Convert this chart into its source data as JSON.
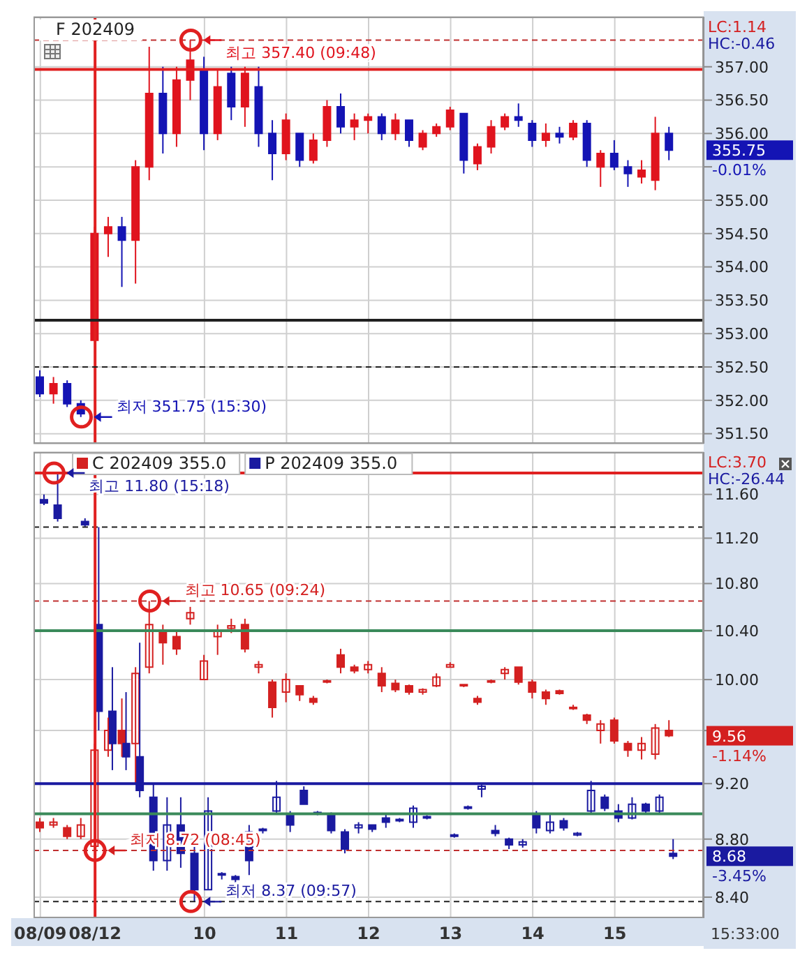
{
  "chart_data": [
    {
      "type": "candlestick",
      "title": "F 202409",
      "categories": [
        "08/09",
        null,
        null,
        null,
        "08/12",
        null,
        null,
        null,
        null,
        null,
        null,
        null,
        "10",
        null,
        null,
        null,
        null,
        null,
        "11",
        null,
        null,
        null,
        null,
        null,
        "12",
        null,
        null,
        null,
        null,
        null,
        "13",
        null,
        null,
        null,
        null,
        null,
        "14",
        null,
        null,
        null,
        null,
        null,
        "15",
        null,
        null,
        null,
        null,
        null,
        null
      ],
      "ohlc": [
        [
          352.35,
          352.45,
          352.05,
          352.1
        ],
        [
          352.1,
          352.35,
          351.95,
          352.25
        ],
        [
          352.25,
          352.3,
          351.9,
          351.95
        ],
        [
          351.95,
          352.0,
          351.75,
          351.8
        ],
        [
          352.9,
          354.6,
          352.9,
          354.5
        ],
        [
          354.5,
          354.75,
          354.15,
          354.6
        ],
        [
          354.6,
          354.75,
          353.7,
          354.4
        ],
        [
          354.4,
          355.6,
          353.75,
          355.5
        ],
        [
          355.5,
          357.3,
          355.3,
          356.6
        ],
        [
          356.6,
          357.0,
          355.7,
          356.0
        ],
        [
          356.0,
          357.0,
          355.8,
          356.8
        ],
        [
          356.8,
          357.4,
          356.5,
          357.1
        ],
        [
          356.95,
          357.15,
          355.75,
          356.0
        ],
        [
          356.0,
          356.95,
          355.9,
          356.7
        ],
        [
          356.9,
          357.0,
          356.2,
          356.4
        ],
        [
          356.4,
          357.0,
          356.1,
          356.9
        ],
        [
          356.7,
          357.0,
          355.8,
          356.0
        ],
        [
          356.0,
          356.2,
          355.3,
          355.7
        ],
        [
          355.7,
          356.3,
          355.6,
          356.2
        ],
        [
          356.0,
          356.0,
          355.5,
          355.6
        ],
        [
          355.6,
          356.0,
          355.55,
          355.9
        ],
        [
          355.9,
          356.5,
          355.8,
          356.4
        ],
        [
          356.4,
          356.6,
          356.0,
          356.1
        ],
        [
          356.1,
          356.3,
          355.9,
          356.2
        ],
        [
          356.2,
          356.3,
          356.0,
          356.25
        ],
        [
          356.25,
          356.3,
          355.9,
          356.0
        ],
        [
          356.0,
          356.3,
          355.9,
          356.2
        ],
        [
          356.2,
          356.2,
          355.8,
          355.9
        ],
        [
          355.8,
          356.05,
          355.75,
          356.0
        ],
        [
          356.0,
          356.15,
          355.95,
          356.1
        ],
        [
          356.1,
          356.4,
          356.05,
          356.35
        ],
        [
          356.3,
          356.3,
          355.4,
          355.6
        ],
        [
          355.55,
          355.85,
          355.45,
          355.8
        ],
        [
          355.8,
          356.2,
          355.7,
          356.1
        ],
        [
          356.1,
          356.3,
          356.05,
          356.25
        ],
        [
          356.25,
          356.45,
          356.1,
          356.2
        ],
        [
          356.15,
          356.2,
          355.8,
          355.9
        ],
        [
          355.9,
          356.15,
          355.8,
          356.0
        ],
        [
          356.0,
          356.1,
          355.85,
          355.95
        ],
        [
          355.95,
          356.2,
          355.9,
          356.15
        ],
        [
          356.15,
          356.2,
          355.5,
          355.6
        ],
        [
          355.5,
          355.75,
          355.2,
          355.7
        ],
        [
          355.7,
          355.9,
          355.45,
          355.5
        ],
        [
          355.5,
          355.6,
          355.2,
          355.4
        ],
        [
          355.35,
          355.6,
          355.25,
          355.45
        ],
        [
          355.3,
          356.25,
          355.15,
          356.0
        ],
        [
          356.0,
          356.1,
          355.6,
          355.75
        ],
        null,
        null
      ],
      "colors": [
        "#1414b4",
        "#e0141e",
        "#1414b4",
        "#1414b4",
        "#e0141e",
        "#e0141e",
        "#1414b4",
        "#e0141e",
        "#e0141e",
        "#1414b4",
        "#e0141e",
        "#e0141e",
        "#1414b4",
        "#e0141e",
        "#1414b4",
        "#e0141e",
        "#1414b4",
        "#1414b4",
        "#e0141e",
        "#1414b4",
        "#e0141e",
        "#e0141e",
        "#1414b4",
        "#e0141e",
        "#e0141e",
        "#1414b4",
        "#e0141e",
        "#1414b4",
        "#e0141e",
        "#e0141e",
        "#e0141e",
        "#1414b4",
        "#e0141e",
        "#e0141e",
        "#e0141e",
        "#1414b4",
        "#1414b4",
        "#e0141e",
        "#1414b4",
        "#e0141e",
        "#1414b4",
        "#e0141e",
        "#1414b4",
        "#1414b4",
        "#e0141e",
        "#e0141e",
        "#1414b4",
        null,
        null
      ],
      "ylim": [
        351.35,
        357.75
      ],
      "yticks": [
        {
          "value": 351.5,
          "label": "351.50"
        },
        {
          "value": 352,
          "label": "352.00"
        },
        {
          "value": 352.5,
          "label": "352.50"
        },
        {
          "value": 353,
          "label": "353.00"
        },
        {
          "value": 353.5,
          "label": "353.50"
        },
        {
          "value": 354,
          "label": "354.00"
        },
        {
          "value": 354.5,
          "label": "354.50"
        },
        {
          "value": 355,
          "label": "355.00"
        },
        {
          "value": 355.5,
          "label": null
        },
        {
          "value": 356,
          "label": "356.00"
        },
        {
          "value": 356.5,
          "label": "356.50"
        },
        {
          "value": 357,
          "label": "357.00"
        }
      ],
      "tick_labels": "y",
      "grid": true,
      "ref_lines": [
        {
          "axis": "x",
          "value": "08/12",
          "color": "#e02020",
          "line_style": "solid"
        },
        {
          "axis": "y",
          "value": 356.96,
          "color": "#e02020",
          "line_style": "solid"
        },
        {
          "axis": "y",
          "value": 357.4,
          "color": "#c03030",
          "line_style": "dashed"
        },
        {
          "axis": "y",
          "value": 353.2,
          "color": "#202020",
          "line_style": "solid"
        },
        {
          "axis": "y",
          "value": 352.5,
          "color": "#202020",
          "line_style": "dashed"
        }
      ],
      "annotations": [
        "LC:1.14",
        "HC:-0.46",
        "최고 357.40 (09:48)",
        "최저 351.75 (15:30)",
        "355.75",
        "-0.01%"
      ]
    },
    {
      "type": "candlestick",
      "categories": [
        "08/09",
        null,
        null,
        null,
        "08/12",
        null,
        null,
        null,
        null,
        null,
        null,
        null,
        "10",
        null,
        null,
        null,
        null,
        null,
        "11",
        null,
        null,
        null,
        null,
        null,
        "12",
        null,
        null,
        null,
        null,
        null,
        "13",
        null,
        null,
        null,
        null,
        null,
        "14",
        null,
        null,
        null,
        null,
        null,
        "15",
        null,
        null,
        null,
        null,
        null,
        null
      ],
      "series": [
        {
          "name": "C 202409 355.0",
          "color": "#d42020",
          "ohlc": [
            [
              8.92,
              8.95,
              8.85,
              8.88
            ],
            [
              8.9,
              8.95,
              8.88,
              8.92
            ],
            [
              8.88,
              8.9,
              8.8,
              8.82
            ],
            [
              8.82,
              8.95,
              8.8,
              8.9
            ],
            [
              8.75,
              9.5,
              8.72,
              9.45
            ],
            [
              9.45,
              9.7,
              9.4,
              9.6
            ],
            [
              9.6,
              9.85,
              9.4,
              9.5
            ],
            [
              9.5,
              10.1,
              9.2,
              10.05
            ],
            [
              10.1,
              10.65,
              10.05,
              10.45
            ],
            [
              10.4,
              10.45,
              10.12,
              10.3
            ],
            [
              10.35,
              10.4,
              10.2,
              10.25
            ],
            [
              10.5,
              10.6,
              10.45,
              10.55
            ],
            [
              10.0,
              10.2,
              10.0,
              10.15
            ],
            [
              10.35,
              10.45,
              10.2,
              10.4
            ],
            [
              10.42,
              10.5,
              10.38,
              10.44
            ],
            [
              10.45,
              10.5,
              10.22,
              10.25
            ],
            [
              10.1,
              10.15,
              10.05,
              10.12
            ],
            [
              9.98,
              10.0,
              9.7,
              9.78
            ],
            [
              9.9,
              10.05,
              9.82,
              10.0
            ],
            [
              9.95,
              9.95,
              9.83,
              9.88
            ],
            [
              9.85,
              9.87,
              9.8,
              9.82
            ],
            [
              9.98,
              10.0,
              9.97,
              9.99
            ],
            [
              10.2,
              10.25,
              10.05,
              10.1
            ],
            [
              10.1,
              10.12,
              10.05,
              10.07
            ],
            [
              10.08,
              10.15,
              10.05,
              10.12
            ],
            [
              10.05,
              10.1,
              9.9,
              9.95
            ],
            [
              9.97,
              10.0,
              9.9,
              9.92
            ],
            [
              9.95,
              9.96,
              9.88,
              9.9
            ],
            [
              9.9,
              9.93,
              9.88,
              9.92
            ],
            [
              9.95,
              10.05,
              9.94,
              10.02
            ],
            [
              10.1,
              10.14,
              10.1,
              10.12
            ],
            [
              9.96,
              9.96,
              9.94,
              9.95
            ],
            [
              9.85,
              9.87,
              9.8,
              9.82
            ],
            [
              9.98,
              10.0,
              9.97,
              9.99
            ],
            [
              10.05,
              10.1,
              10.0,
              10.08
            ],
            [
              10.1,
              10.1,
              9.96,
              9.98
            ],
            [
              9.98,
              10.0,
              9.85,
              9.9
            ],
            [
              9.9,
              9.92,
              9.8,
              9.85
            ],
            [
              9.91,
              9.92,
              9.88,
              9.89
            ],
            [
              9.78,
              9.8,
              9.76,
              9.77
            ],
            [
              9.72,
              9.73,
              9.65,
              9.68
            ],
            [
              9.6,
              9.68,
              9.5,
              9.65
            ],
            [
              9.68,
              9.7,
              9.5,
              9.52
            ],
            [
              9.5,
              9.52,
              9.4,
              9.45
            ],
            [
              9.45,
              9.55,
              9.38,
              9.5
            ],
            [
              9.42,
              9.65,
              9.38,
              9.62
            ],
            [
              9.6,
              9.68,
              9.55,
              9.56
            ],
            null,
            null
          ]
        },
        {
          "name": "P 202409 355.0",
          "color": "#1a1aa0",
          "ohlc": [
            [
              11.55,
              11.6,
              11.5,
              11.52
            ],
            [
              11.5,
              11.8,
              11.35,
              11.38
            ],
            null,
            [
              11.35,
              11.38,
              11.3,
              11.32
            ],
            [
              10.45,
              11.3,
              9.6,
              9.75
            ],
            [
              9.75,
              10.1,
              9.3,
              9.5
            ],
            [
              9.5,
              9.9,
              9.3,
              9.4
            ],
            [
              9.4,
              10.3,
              9.1,
              9.15
            ],
            [
              9.1,
              9.2,
              8.58,
              8.65
            ],
            [
              8.65,
              9.1,
              8.58,
              8.9
            ],
            [
              8.9,
              9.1,
              8.6,
              8.7
            ],
            [
              8.7,
              8.75,
              8.37,
              8.45
            ],
            [
              8.45,
              9.1,
              8.45,
              9.0
            ],
            [
              8.56,
              8.57,
              8.52,
              8.55
            ],
            [
              8.54,
              8.55,
              8.5,
              8.52
            ],
            [
              8.85,
              8.9,
              8.55,
              8.65
            ],
            [
              8.86,
              8.88,
              8.84,
              8.87
            ],
            [
              9.0,
              9.22,
              8.98,
              9.1
            ],
            [
              8.98,
              9.0,
              8.85,
              8.9
            ],
            [
              9.15,
              9.18,
              9.05,
              9.05
            ],
            [
              8.99,
              9.0,
              8.97,
              8.98
            ],
            [
              8.98,
              8.99,
              8.84,
              8.86
            ],
            [
              8.85,
              8.87,
              8.7,
              8.73
            ],
            [
              8.88,
              8.92,
              8.84,
              8.9
            ],
            [
              8.9,
              8.9,
              8.85,
              8.87
            ],
            [
              8.95,
              8.98,
              8.88,
              8.92
            ],
            [
              8.93,
              8.95,
              8.92,
              8.94
            ],
            [
              8.92,
              9.04,
              8.88,
              9.02
            ],
            [
              8.95,
              8.97,
              8.94,
              8.96
            ],
            null,
            [
              8.82,
              8.84,
              8.81,
              8.83
            ],
            [
              9.02,
              9.04,
              9.01,
              9.03
            ],
            [
              9.16,
              9.2,
              9.1,
              9.18
            ],
            [
              8.86,
              8.9,
              8.82,
              8.84
            ],
            [
              8.8,
              8.81,
              8.73,
              8.76
            ],
            [
              8.76,
              8.8,
              8.74,
              8.78
            ],
            [
              8.97,
              9.0,
              8.84,
              8.88
            ],
            [
              8.86,
              8.98,
              8.84,
              8.92
            ],
            [
              8.93,
              8.95,
              8.86,
              8.88
            ],
            [
              8.83,
              8.85,
              8.82,
              8.84
            ],
            [
              9.0,
              9.22,
              8.98,
              9.15
            ],
            [
              9.1,
              9.12,
              9.0,
              9.02
            ],
            [
              9.0,
              9.05,
              8.92,
              8.95
            ],
            [
              8.95,
              9.1,
              8.94,
              9.05
            ],
            [
              9.05,
              9.06,
              8.98,
              9.0
            ],
            [
              9.0,
              9.12,
              8.98,
              9.1
            ],
            [
              8.7,
              8.8,
              8.66,
              8.68
            ],
            null,
            null
          ]
        }
      ],
      "ylim": [
        8.26,
        12.0
      ],
      "yticks": [
        {
          "value": 8.4,
          "label": "8.40"
        },
        {
          "value": 8.8,
          "label": "8.80"
        },
        {
          "value": 9.2,
          "label": "9.20"
        },
        {
          "value": 9.6,
          "label": null
        },
        {
          "value": 10,
          "label": "10.00"
        },
        {
          "value": 10.4,
          "label": "10.40"
        },
        {
          "value": 10.8,
          "label": "10.80"
        },
        {
          "value": 11.2,
          "label": "11.20"
        },
        {
          "value": 11.6,
          "label": "11.60"
        }
      ],
      "log": "y",
      "grid": true,
      "legend": "top left",
      "ref_lines": [
        {
          "axis": "y",
          "value": 11.8,
          "color": "#e02020",
          "line_style": "solid"
        },
        {
          "axis": "y",
          "value": 11.3,
          "color": "#202020",
          "line_style": "dashed"
        },
        {
          "axis": "y",
          "value": 10.65,
          "color": "#c03030",
          "line_style": "dashed"
        },
        {
          "axis": "y",
          "value": 10.4,
          "color": "#3a8a5a",
          "line_style": "solid"
        },
        {
          "axis": "y",
          "value": 9.2,
          "color": "#1a1aa0",
          "line_style": "solid"
        },
        {
          "axis": "y",
          "value": 8.98,
          "color": "#3a8a5a",
          "line_style": "solid"
        },
        {
          "axis": "y",
          "value": 8.72,
          "color": "#c03030",
          "line_style": "dashed"
        },
        {
          "axis": "y",
          "value": 8.37,
          "color": "#202020",
          "line_style": "dashed"
        },
        {
          "axis": "x",
          "value": "08/12",
          "color": "#e02020",
          "line_style": "solid"
        }
      ],
      "annotations": [
        "LC:3.70",
        "HC:-26.44",
        "최고 11.80 (15:18)",
        "최고 10.65 (09:24)",
        "최저 8.72 (08:45)",
        "최저 8.37 (09:57)",
        "9.56",
        "-1.14%",
        "8.68",
        "-3.45%",
        "15:33:00"
      ]
    }
  ]
}
